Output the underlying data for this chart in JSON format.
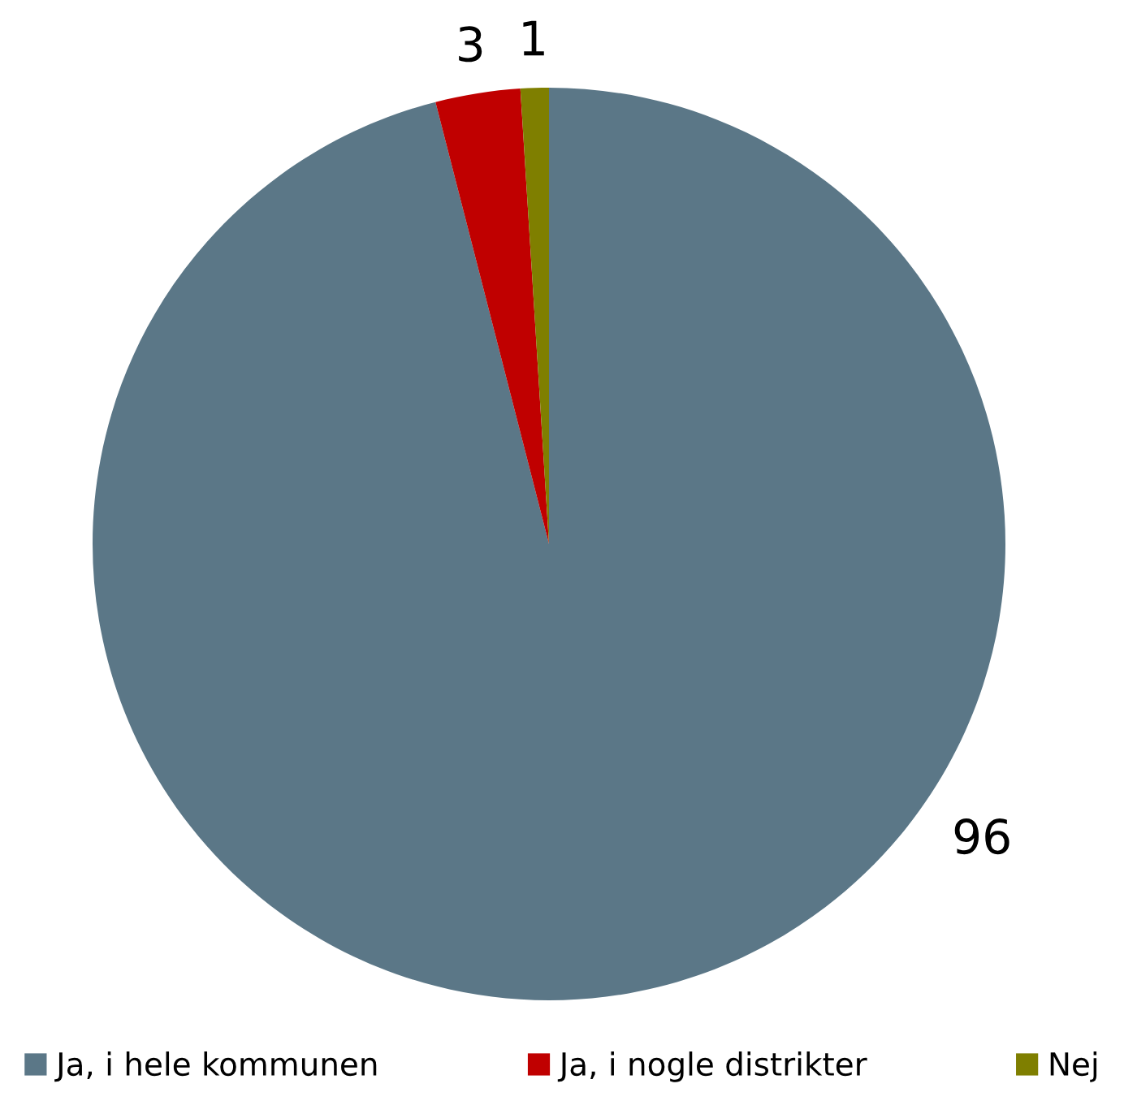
{
  "chart_data": {
    "type": "pie",
    "categories": [
      "Ja, i hele kommunen",
      "Ja, i nogle distrikter",
      "Nej"
    ],
    "values": [
      96,
      3,
      1
    ],
    "colors": [
      "#5b7787",
      "#c00000",
      "#7f7f00"
    ],
    "data_labels": true,
    "legend": "bottom"
  }
}
